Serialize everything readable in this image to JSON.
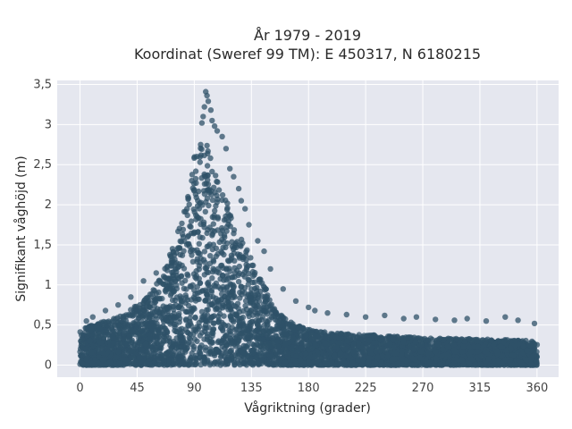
{
  "title_line1": "År 1979 - 2019",
  "title_line2": "Koordinat (Sweref 99 TM): E 450317, N 6180215",
  "chart_data": {
    "type": "scatter",
    "title": "År 1979 - 2019\nKoordinat (Sweref 99 TM): E 450317, N 6180215",
    "xlabel": "Vågriktning (grader)",
    "ylabel": "Signifikant våghöjd (m)",
    "xlim": [
      -18,
      377
    ],
    "ylim": [
      -0.15,
      3.55
    ],
    "x_ticks": [
      0,
      45,
      90,
      135,
      180,
      225,
      270,
      315,
      360
    ],
    "x_tick_labels": [
      "0",
      "45",
      "90",
      "135",
      "180",
      "225",
      "270",
      "315",
      "360"
    ],
    "y_ticks": [
      0,
      0.5,
      1,
      1.5,
      2,
      2.5,
      3,
      3.5
    ],
    "y_tick_labels": [
      "0",
      "0,5",
      "1",
      "1,5",
      "2",
      "2,5",
      "3",
      "3,5"
    ],
    "grid": true,
    "background_color": "#e5e7ef",
    "marker_color": "#2f5168",
    "marker_opacity": 0.75,
    "dense_region_upper_envelope": {
      "x": [
        0,
        10,
        20,
        30,
        40,
        50,
        60,
        70,
        80,
        85,
        90,
        95,
        100,
        105,
        110,
        115,
        120,
        125,
        130,
        135,
        140,
        150,
        160,
        170,
        180,
        200,
        225,
        250,
        270,
        300,
        330,
        360
      ],
      "y": [
        0.45,
        0.5,
        0.55,
        0.6,
        0.7,
        0.8,
        1.0,
        1.35,
        1.8,
        2.2,
        2.6,
        2.85,
        2.8,
        2.5,
        2.3,
        2.1,
        1.85,
        1.65,
        1.5,
        1.35,
        1.15,
        0.85,
        0.6,
        0.5,
        0.45,
        0.4,
        0.38,
        0.36,
        0.34,
        0.33,
        0.32,
        0.3
      ]
    },
    "outlier_points": {
      "x": [
        99,
        100,
        101,
        98,
        103,
        97,
        104,
        96,
        106,
        108,
        112,
        115,
        95,
        92,
        118,
        121,
        125,
        127,
        88,
        85,
        130,
        133,
        140,
        145,
        150,
        160,
        170,
        180,
        185,
        195,
        210,
        225,
        240,
        255,
        265,
        280,
        295,
        305,
        320,
        335,
        345,
        358,
        60,
        50,
        40,
        30,
        20,
        10,
        5
      ],
      "y": [
        3.41,
        3.36,
        3.29,
        3.22,
        3.18,
        3.1,
        3.05,
        3.02,
        2.98,
        2.92,
        2.85,
        2.7,
        2.75,
        2.6,
        2.45,
        2.35,
        2.2,
        2.05,
        2.3,
        2.1,
        1.95,
        1.75,
        1.55,
        1.42,
        1.2,
        0.95,
        0.8,
        0.72,
        0.68,
        0.65,
        0.63,
        0.6,
        0.62,
        0.58,
        0.6,
        0.57,
        0.56,
        0.58,
        0.55,
        0.6,
        0.56,
        0.52,
        1.15,
        1.05,
        0.85,
        0.75,
        0.68,
        0.6,
        0.55
      ]
    }
  }
}
